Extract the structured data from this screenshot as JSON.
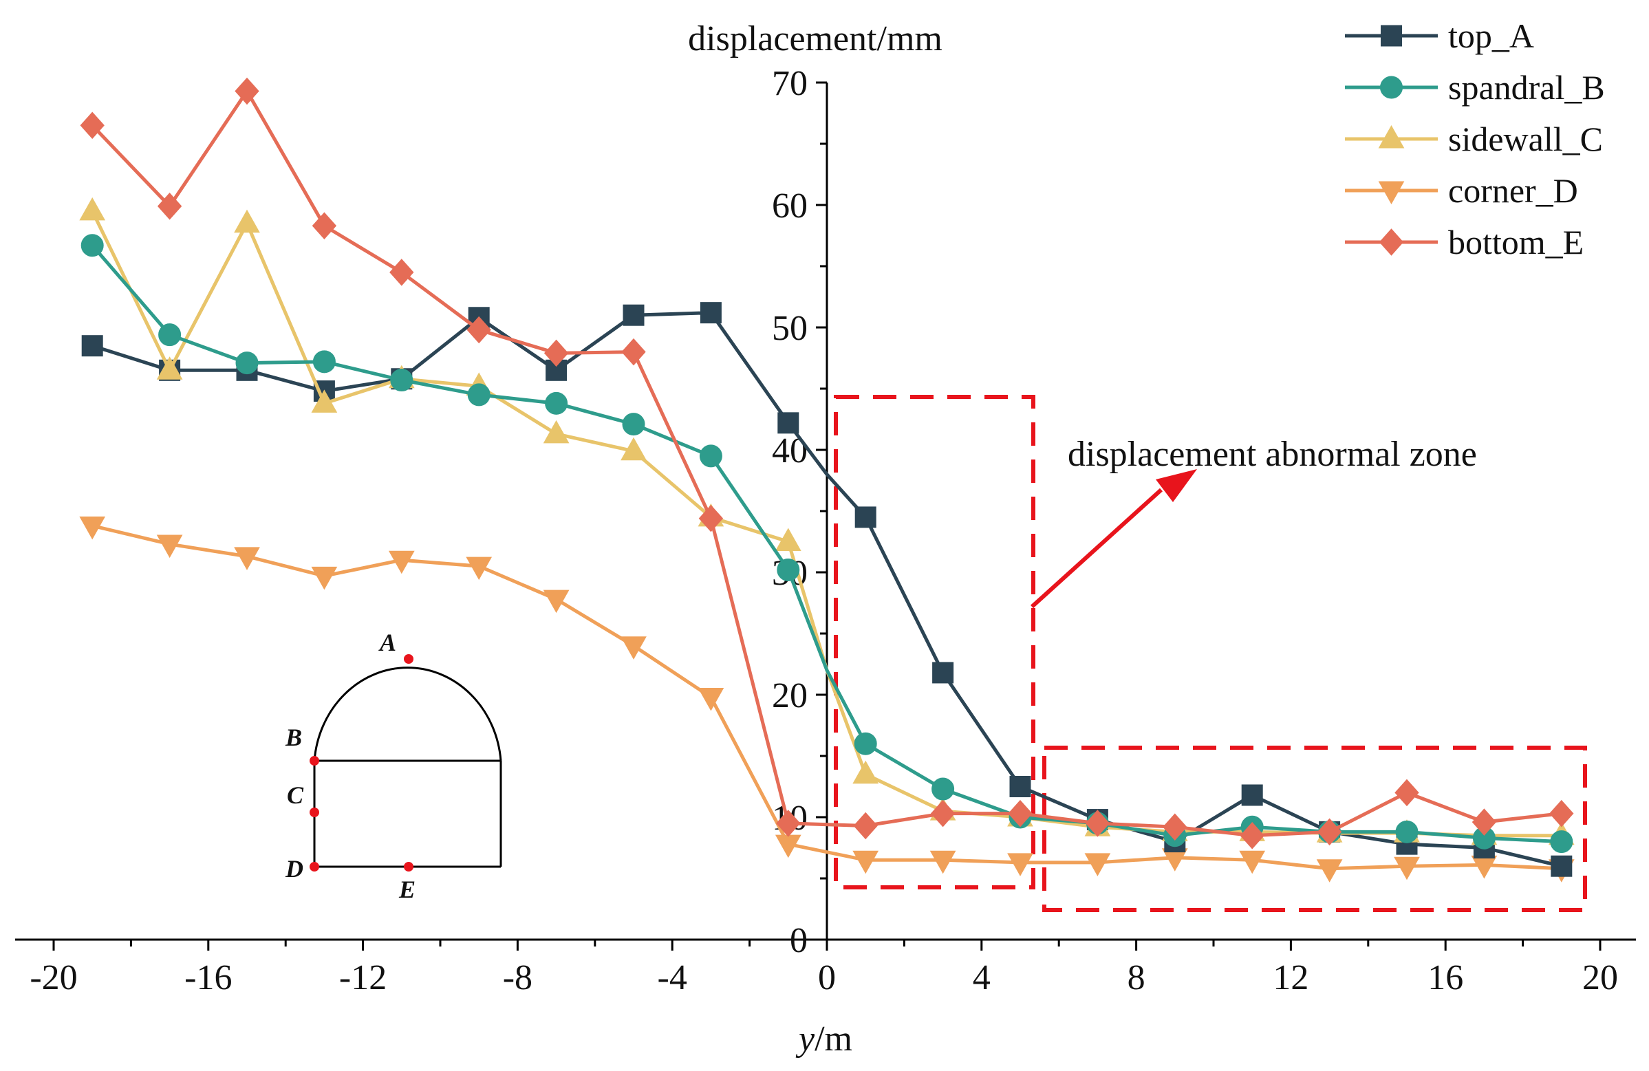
{
  "chart_data": {
    "type": "line",
    "title": "",
    "xlabel_italic": "y",
    "xlabel_unit": "/m",
    "ylabel": "displacement/mm",
    "xlim": [
      -21,
      21
    ],
    "ylim": [
      0,
      70
    ],
    "x_ticks": [
      "-20",
      "-16",
      "-12",
      "-8",
      "-4",
      "0",
      "4",
      "8",
      "12",
      "16",
      "20"
    ],
    "y_ticks": [
      "0",
      "10",
      "20",
      "30",
      "40",
      "50",
      "60",
      "70"
    ],
    "x": [
      -19,
      -17,
      -15,
      -13,
      -11,
      -9,
      -7,
      -5,
      -3,
      -1,
      1,
      3,
      5,
      7,
      9,
      11,
      13,
      15,
      17,
      19
    ],
    "series": [
      {
        "name": "top_A",
        "color": "#2b4454",
        "marker": "square",
        "x": [
          -19,
          -17,
          -15,
          -13,
          -11,
          -9,
          -7,
          -5,
          -3,
          -1,
          0,
          1,
          3,
          5,
          7,
          9,
          11,
          13,
          15,
          17,
          19
        ],
        "values": [
          48.5,
          46.5,
          46.5,
          44.8,
          45.8,
          50.8,
          46.5,
          51.0,
          51.2,
          42.2,
          38.0,
          34.5,
          21.8,
          12.5,
          9.8,
          8.0,
          11.8,
          8.8,
          7.8,
          7.5,
          6.0
        ]
      },
      {
        "name": "spandral_B",
        "color": "#2e9c8c",
        "marker": "circle",
        "x": [
          -19,
          -17,
          -15,
          -13,
          -11,
          -9,
          -7,
          -5,
          -3,
          -1,
          0,
          1,
          3,
          5,
          7,
          9,
          11,
          13,
          15,
          17,
          19
        ],
        "values": [
          56.7,
          49.4,
          47.1,
          47.2,
          45.7,
          44.5,
          43.8,
          42.1,
          39.5,
          30.2,
          22.0,
          16.0,
          12.3,
          10.0,
          9.5,
          8.5,
          9.2,
          8.8,
          8.8,
          8.3,
          8.0
        ]
      },
      {
        "name": "sidewall_C",
        "color": "#e8c46a",
        "marker": "triangle-up",
        "x": [
          -19,
          -17,
          -15,
          -13,
          -11,
          -9,
          -7,
          -5,
          -3,
          -1,
          0,
          1,
          3,
          5,
          7,
          9,
          11,
          13,
          15,
          17,
          19
        ],
        "values": [
          59.5,
          46.5,
          58.5,
          43.8,
          45.8,
          45.2,
          41.3,
          39.9,
          34.5,
          32.5,
          22.0,
          13.5,
          10.5,
          10.0,
          9.2,
          8.8,
          8.8,
          8.7,
          8.7,
          8.5,
          8.5
        ]
      },
      {
        "name": "corner_D",
        "color": "#f0a058",
        "marker": "triangle-down",
        "x": [
          -19,
          -17,
          -15,
          -13,
          -11,
          -9,
          -7,
          -5,
          -3,
          -1,
          1,
          3,
          5,
          7,
          9,
          11,
          13,
          15,
          17,
          19
        ],
        "values": [
          33.8,
          32.3,
          31.3,
          29.7,
          31.0,
          30.5,
          27.8,
          24.0,
          19.8,
          7.8,
          6.5,
          6.5,
          6.3,
          6.3,
          6.7,
          6.5,
          5.8,
          6.0,
          6.1,
          5.8
        ]
      },
      {
        "name": "bottom_E",
        "color": "#e56c56",
        "marker": "diamond",
        "x": [
          -19,
          -17,
          -15,
          -13,
          -11,
          -9,
          -7,
          -5,
          -3,
          -1,
          1,
          3,
          5,
          7,
          9,
          11,
          13,
          15,
          17,
          19
        ],
        "values": [
          66.5,
          59.9,
          69.3,
          58.3,
          54.5,
          49.8,
          47.9,
          48.0,
          34.4,
          9.5,
          9.3,
          10.3,
          10.3,
          9.5,
          9.2,
          8.5,
          8.8,
          12.0,
          9.6,
          10.3
        ]
      }
    ],
    "annotation": "displacement abnormal zone",
    "annotation_color": "#e8141c",
    "abnormal_zones_y": [
      [
        0.2,
        5.3
      ],
      [
        5.8,
        19.8
      ]
    ],
    "inset_labels": [
      "A",
      "B",
      "C",
      "D",
      "E"
    ],
    "inset_point_color": "#e8141c"
  }
}
